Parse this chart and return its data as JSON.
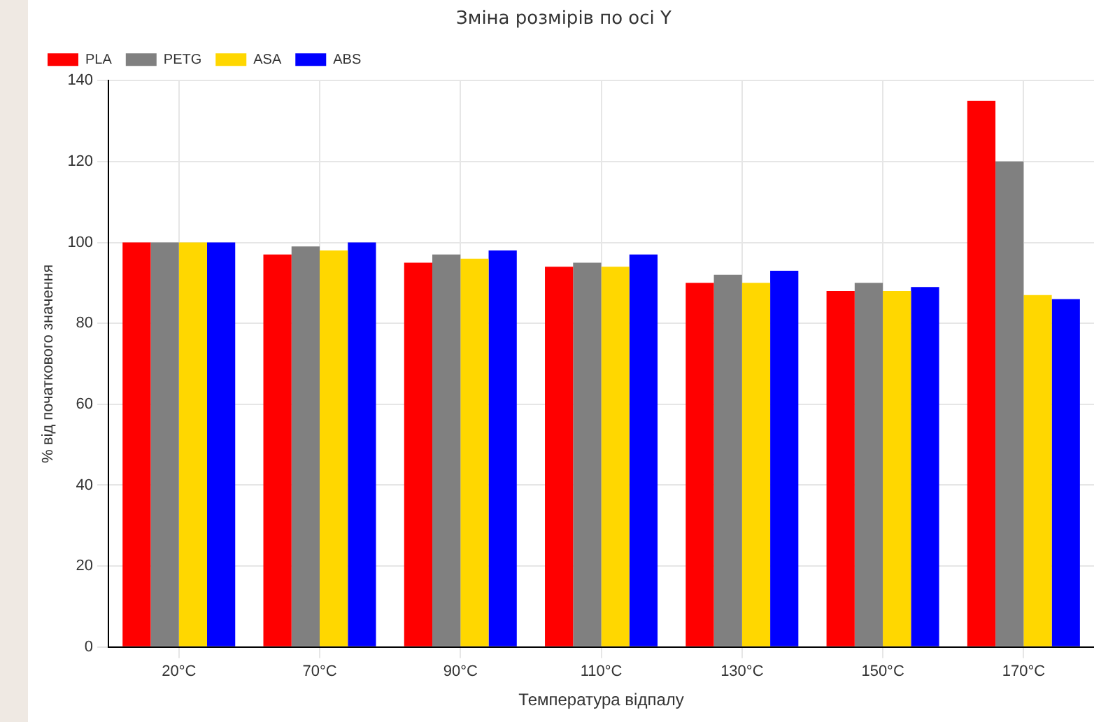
{
  "chart_data": {
    "type": "bar",
    "title": "Зміна розмірів по осі Y",
    "xlabel": "Температура відпалу",
    "ylabel": "% від початкового значення",
    "categories": [
      "20°C",
      "70°C",
      "90°C",
      "110°C",
      "130°C",
      "150°C",
      "170°C"
    ],
    "series": [
      {
        "name": "PLA",
        "color": "#ff0000",
        "values": [
          100,
          97,
          95,
          94,
          90,
          88,
          135
        ]
      },
      {
        "name": "PETG",
        "color": "#808080",
        "values": [
          100,
          99,
          97,
          95,
          92,
          90,
          120
        ]
      },
      {
        "name": "ASA",
        "color": "#ffd700",
        "values": [
          100,
          98,
          96,
          94,
          90,
          88,
          87
        ]
      },
      {
        "name": "ABS",
        "color": "#0000ff",
        "values": [
          100,
          100,
          98,
          97,
          93,
          89,
          86
        ]
      }
    ],
    "ylim": [
      0,
      140
    ],
    "yticks": [
      0,
      20,
      40,
      60,
      80,
      100,
      120,
      140
    ],
    "grid": true,
    "legend": "top left"
  }
}
